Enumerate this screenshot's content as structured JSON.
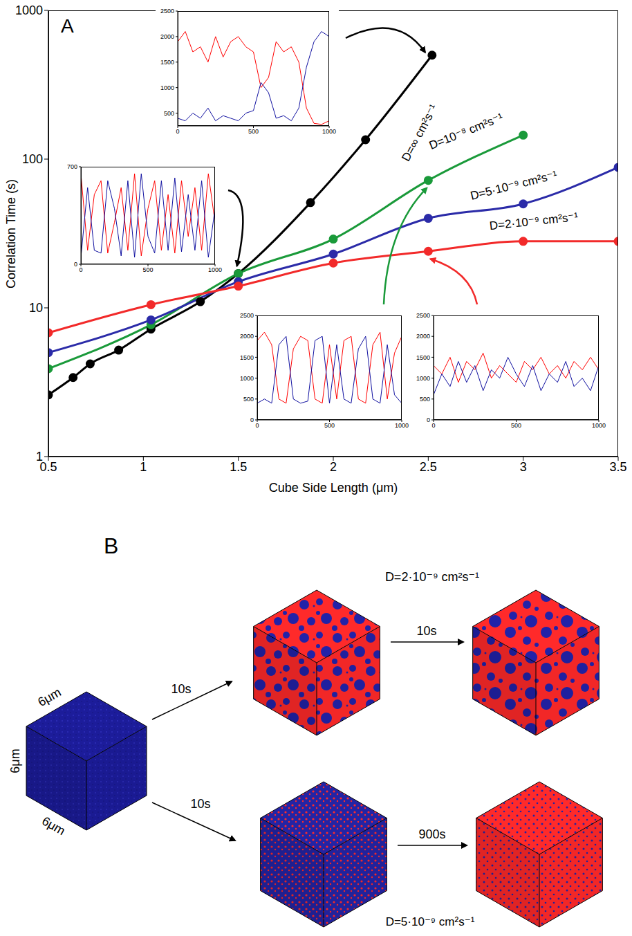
{
  "chart_data": [
    {
      "type": "line",
      "label": "A",
      "x_label": "Cube Side Length (μm)",
      "y_label": "Correlation Time (s)",
      "log": "y",
      "marker": "circle",
      "xlim": [
        0.5,
        3.5
      ],
      "xticks": [
        0.5,
        1,
        1.5,
        2,
        2.5,
        3,
        3.5
      ],
      "ylim": [
        1,
        1000
      ],
      "yticks": [
        1,
        10,
        100,
        1000
      ],
      "series": [
        {
          "name": "D=∞ cm²s⁻¹",
          "color": "#000000",
          "x": [
            0.5,
            0.63,
            0.72,
            0.87,
            1.04,
            1.3,
            1.5,
            1.88,
            2.17,
            2.52
          ],
          "values": [
            2.6,
            3.4,
            4.2,
            5.2,
            7.2,
            11,
            17,
            51,
            135,
            500
          ]
        },
        {
          "name": "D=10⁻⁸ cm²s⁻¹",
          "color": "#1a9a3a",
          "x": [
            0.5,
            1.04,
            1.5,
            2,
            2.5,
            3
          ],
          "values": [
            3.9,
            7.7,
            17,
            29,
            72,
            145
          ]
        },
        {
          "name": "D=5·10⁻⁹ cm²s⁻¹",
          "color": "#2b2ba8",
          "x": [
            0.5,
            1.04,
            1.5,
            2,
            2.5,
            3,
            3.5
          ],
          "values": [
            5,
            8.3,
            15,
            23,
            40,
            50,
            88
          ]
        },
        {
          "name": "D=2·10⁻⁹ cm²s⁻¹",
          "color": "#f22a2a",
          "x": [
            0.5,
            1.04,
            1.5,
            2,
            2.5,
            3,
            3.5
          ],
          "values": [
            6.8,
            10.5,
            14,
            20,
            24,
            28,
            28
          ]
        }
      ]
    },
    {
      "type": "line",
      "xlim": [
        0,
        1000
      ],
      "xticks": [
        0,
        500,
        1000
      ],
      "ylim": [
        250,
        2500
      ],
      "yticks": [
        500,
        1000,
        1500,
        2000,
        2500
      ],
      "x": [
        0,
        50,
        100,
        150,
        200,
        250,
        300,
        350,
        400,
        450,
        500,
        550,
        600,
        650,
        700,
        750,
        800,
        850,
        900,
        950,
        1000
      ],
      "series": [
        {
          "color": "#ff0000",
          "values": [
            1900,
            2100,
            1700,
            1800,
            1500,
            2000,
            1600,
            1900,
            2000,
            1800,
            1700,
            1000,
            1200,
            1900,
            1700,
            1800,
            1500,
            600,
            300,
            280,
            350
          ]
        },
        {
          "color": "#1010a0",
          "values": [
            400,
            350,
            500,
            400,
            600,
            350,
            450,
            400,
            350,
            500,
            550,
            1100,
            900,
            400,
            450,
            350,
            600,
            1400,
            1900,
            2100,
            2000
          ]
        }
      ],
      "points_to": {
        "series": "D=∞ cm²s⁻¹",
        "x": 2.52
      }
    },
    {
      "type": "line",
      "xlim": [
        0,
        1000
      ],
      "xticks": [
        0,
        500,
        1000
      ],
      "ylim": [
        0,
        700
      ],
      "yticks": [
        0,
        700
      ],
      "x": [
        0,
        50,
        100,
        150,
        200,
        250,
        300,
        350,
        400,
        450,
        500,
        550,
        600,
        650,
        700,
        750,
        800,
        850,
        900,
        950,
        1000
      ],
      "series": [
        {
          "color": "#ff0000",
          "values": [
            650,
            100,
            500,
            600,
            80,
            300,
            550,
            100,
            650,
            60,
            400,
            600,
            100,
            500,
            80,
            600,
            200,
            550,
            100,
            650,
            300
          ]
        },
        {
          "color": "#1010a0",
          "values": [
            50,
            550,
            100,
            80,
            600,
            400,
            60,
            600,
            50,
            650,
            200,
            80,
            600,
            100,
            620,
            90,
            500,
            100,
            600,
            50,
            400
          ]
        }
      ],
      "points_to": {
        "series": "D=∞ cm²s⁻¹",
        "x": 1.5
      }
    },
    {
      "type": "line",
      "xlim": [
        0,
        1000
      ],
      "xticks": [
        0,
        500,
        1000
      ],
      "ylim": [
        0,
        2500
      ],
      "yticks": [
        0,
        500,
        1000,
        1500,
        2000,
        2500
      ],
      "x": [
        0,
        50,
        100,
        150,
        200,
        250,
        300,
        350,
        400,
        450,
        500,
        550,
        600,
        650,
        700,
        750,
        800,
        850,
        900,
        950,
        1000
      ],
      "series": [
        {
          "color": "#ff0000",
          "values": [
            1900,
            2100,
            1800,
            500,
            400,
            1700,
            2000,
            1900,
            500,
            400,
            1800,
            500,
            1900,
            2000,
            500,
            400,
            1800,
            2100,
            500,
            1600,
            2000
          ]
        },
        {
          "color": "#1010a0",
          "values": [
            400,
            500,
            400,
            1800,
            2000,
            500,
            400,
            450,
            1900,
            2000,
            400,
            1800,
            500,
            400,
            1700,
            2000,
            500,
            400,
            1800,
            600,
            400
          ]
        }
      ],
      "points_to": {
        "series": "D=10⁻⁸ cm²s⁻¹",
        "x": 2.5
      }
    },
    {
      "type": "line",
      "xlim": [
        0,
        1000
      ],
      "xticks": [
        0,
        500,
        1000
      ],
      "ylim": [
        0,
        2500
      ],
      "yticks": [
        0,
        500,
        1000,
        1500,
        2000,
        2500
      ],
      "x": [
        0,
        50,
        100,
        150,
        200,
        250,
        300,
        350,
        400,
        450,
        500,
        550,
        600,
        650,
        700,
        750,
        800,
        850,
        900,
        950,
        1000
      ],
      "series": [
        {
          "color": "#ff0000",
          "values": [
            1300,
            1100,
            1500,
            900,
            1400,
            1200,
            1600,
            1000,
            1300,
            1100,
            900,
            1400,
            1200,
            1500,
            1100,
            1300,
            1000,
            1400,
            1200,
            1500,
            1200
          ]
        },
        {
          "color": "#1010a0",
          "values": [
            600,
            1100,
            800,
            1400,
            900,
            1300,
            700,
            1200,
            1000,
            1500,
            1100,
            800,
            1300,
            700,
            1100,
            900,
            1400,
            800,
            1000,
            700,
            1300
          ]
        }
      ],
      "points_to": {
        "series": "D=2·10⁻⁹ cm²s⁻¹",
        "x": 2.5
      }
    }
  ],
  "diagram": {
    "label": "B",
    "initial": {
      "edge_labels": {
        "top": "6μm",
        "left": "6μm",
        "bottom": "6μm"
      }
    },
    "rows": [
      {
        "D": "D=2·10⁻⁹ cm²s⁻¹",
        "first_step": "10s",
        "second_step": "10s"
      },
      {
        "D": "D=5·10⁻⁹ cm²s⁻¹",
        "first_step": "10s",
        "second_step": "900s"
      }
    ]
  }
}
